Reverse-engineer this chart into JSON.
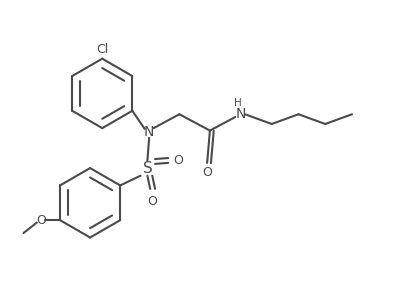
{
  "bg": "#ffffff",
  "lc": "#4a4a4a",
  "lw": 1.5,
  "fs": 9.0,
  "dpi": 100,
  "figsize": [
    3.99,
    2.91
  ],
  "xlim": [
    -0.5,
    10.5
  ],
  "ylim": [
    -0.5,
    7.8
  ]
}
